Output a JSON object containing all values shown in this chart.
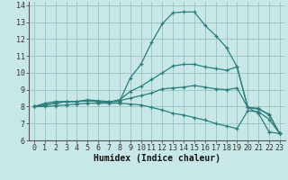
{
  "xlabel": "Humidex (Indice chaleur)",
  "xlim": [
    -0.5,
    23.5
  ],
  "ylim": [
    6,
    14.2
  ],
  "bg_color": "#c8e8e8",
  "line_color": "#2d7d7d",
  "grid_color": "#a0c8c8",
  "lines": [
    {
      "x": [
        0,
        1,
        2,
        3,
        4,
        5,
        6,
        7,
        8,
        9,
        10,
        11,
        12,
        13,
        14,
        15,
        16,
        17,
        18,
        19,
        20,
        21,
        22,
        23
      ],
      "y": [
        8.0,
        8.2,
        8.3,
        8.3,
        8.3,
        8.4,
        8.35,
        8.3,
        8.3,
        9.7,
        10.5,
        11.8,
        12.9,
        13.55,
        13.6,
        13.6,
        12.8,
        12.2,
        11.5,
        10.35,
        7.95,
        7.6,
        6.5,
        6.4
      ]
    },
    {
      "x": [
        0,
        1,
        2,
        3,
        4,
        5,
        6,
        7,
        8,
        9,
        10,
        11,
        12,
        13,
        14,
        15,
        16,
        17,
        18,
        19,
        20,
        21,
        22,
        23
      ],
      "y": [
        8.0,
        8.1,
        8.2,
        8.3,
        8.3,
        8.35,
        8.3,
        8.28,
        8.4,
        8.9,
        9.2,
        9.6,
        10.0,
        10.4,
        10.5,
        10.5,
        10.35,
        10.25,
        10.15,
        10.35,
        7.95,
        7.9,
        7.5,
        6.4
      ]
    },
    {
      "x": [
        0,
        1,
        2,
        3,
        4,
        5,
        6,
        7,
        8,
        9,
        10,
        11,
        12,
        13,
        14,
        15,
        16,
        17,
        18,
        19,
        20,
        21,
        22,
        23
      ],
      "y": [
        8.0,
        8.1,
        8.2,
        8.3,
        8.3,
        8.35,
        8.3,
        8.27,
        8.35,
        8.5,
        8.65,
        8.8,
        9.05,
        9.1,
        9.15,
        9.25,
        9.15,
        9.05,
        9.0,
        9.1,
        7.95,
        7.85,
        7.55,
        6.4
      ]
    },
    {
      "x": [
        0,
        1,
        2,
        3,
        4,
        5,
        6,
        7,
        8,
        9,
        10,
        11,
        12,
        13,
        14,
        15,
        16,
        17,
        18,
        19,
        20,
        21,
        22,
        23
      ],
      "y": [
        8.0,
        8.0,
        8.05,
        8.1,
        8.15,
        8.2,
        8.2,
        8.2,
        8.2,
        8.15,
        8.1,
        7.95,
        7.8,
        7.6,
        7.5,
        7.35,
        7.2,
        7.0,
        6.85,
        6.7,
        7.75,
        7.7,
        7.25,
        6.4
      ]
    }
  ],
  "xticks": [
    0,
    1,
    2,
    3,
    4,
    5,
    6,
    7,
    8,
    9,
    10,
    11,
    12,
    13,
    14,
    15,
    16,
    17,
    18,
    19,
    20,
    21,
    22,
    23
  ],
  "yticks": [
    6,
    7,
    8,
    9,
    10,
    11,
    12,
    13,
    14
  ],
  "tick_fontsize": 6,
  "label_fontsize": 7
}
